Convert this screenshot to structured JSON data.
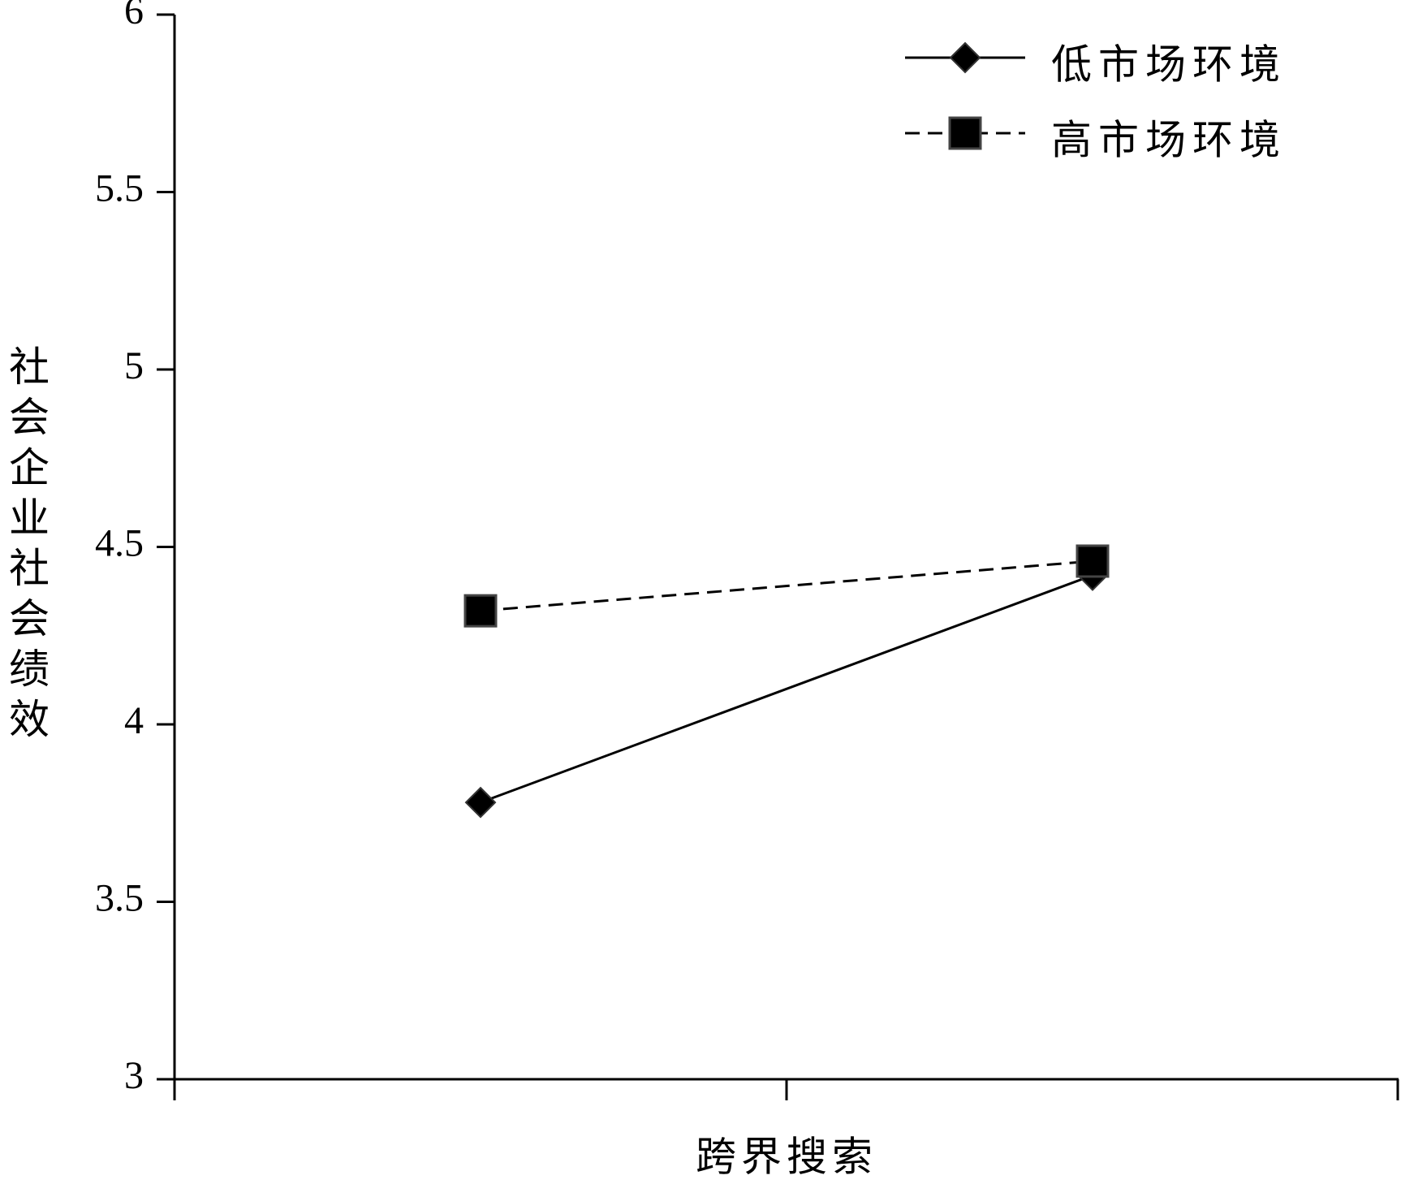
{
  "chart_data": {
    "type": "line",
    "y_label": "社会企业社会绩效",
    "x_label": "跨界搜索",
    "categories": [
      null,
      null
    ],
    "series": [
      {
        "name": "低市场环境",
        "color": "#000000",
        "dash": "solid",
        "marker": "diamond",
        "values": [
          3.78,
          4.42
        ]
      },
      {
        "name": "高市场环境",
        "color": "#000000",
        "dash": "dashed",
        "marker": "square",
        "values": [
          4.32,
          4.46
        ]
      }
    ],
    "ylim": [
      3,
      6
    ],
    "yticks": [
      3,
      3.5,
      4,
      4.5,
      5,
      5.5,
      6
    ],
    "grid": false,
    "legend": "upper right"
  }
}
